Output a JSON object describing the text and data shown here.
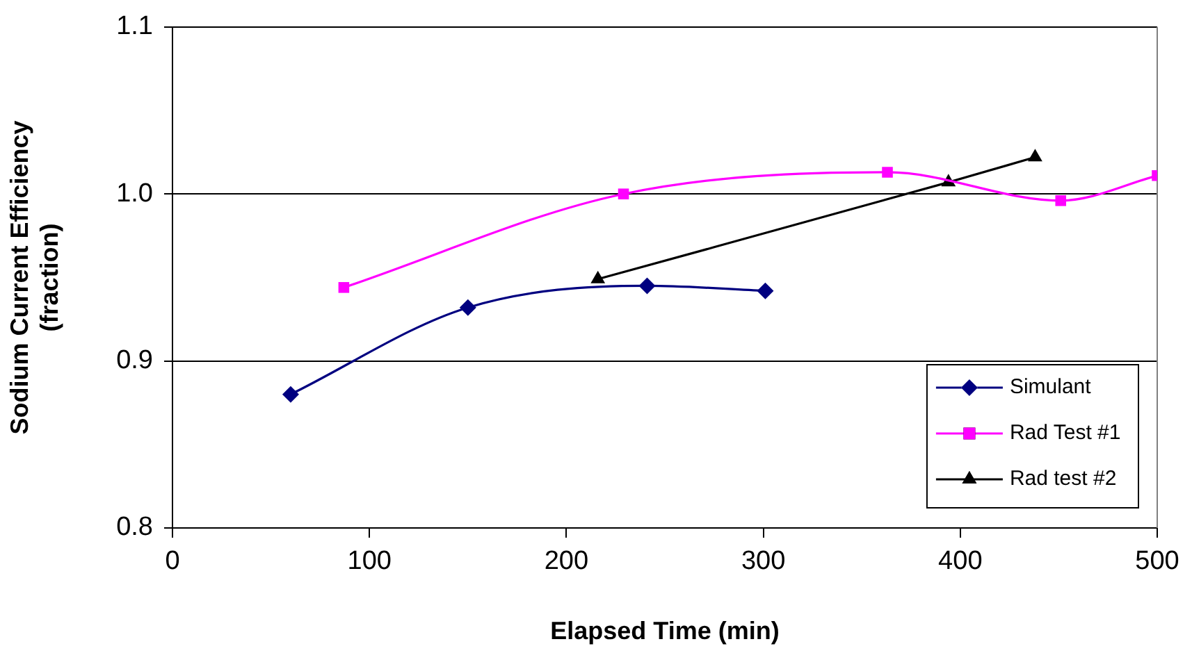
{
  "chart_data": {
    "type": "line",
    "xlabel": "Elapsed Time (min)",
    "ylabel": "Sodium Current Efficiency\n(fraction)",
    "xlim": [
      0,
      500
    ],
    "xticks": [
      0,
      100,
      200,
      300,
      400,
      500
    ],
    "ylim": [
      0.8,
      1.1
    ],
    "yticks": [
      {
        "value": 0.8,
        "label": "0.8"
      },
      {
        "value": 0.9,
        "label": "0.9"
      },
      {
        "value": 1.0,
        "label": "1.0"
      },
      {
        "value": 1.1,
        "label": "1.1"
      }
    ],
    "grid": "y",
    "legend": "bottom right",
    "series": [
      {
        "name": "Simulant",
        "color": "#000080",
        "marker": "diamond",
        "x": [
          60,
          150,
          241,
          301
        ],
        "values": [
          0.88,
          0.932,
          0.945,
          0.942
        ]
      },
      {
        "name": "Rad Test #1",
        "color": "#ff00ff",
        "marker": "square",
        "x": [
          87,
          229,
          363,
          451,
          500
        ],
        "values": [
          0.944,
          1.0,
          1.013,
          0.996,
          1.011
        ]
      },
      {
        "name": "Rad test #2",
        "color": "#000000",
        "marker": "triangle",
        "x": [
          216,
          394,
          438
        ],
        "values": [
          0.949,
          1.007,
          1.022
        ]
      }
    ]
  }
}
